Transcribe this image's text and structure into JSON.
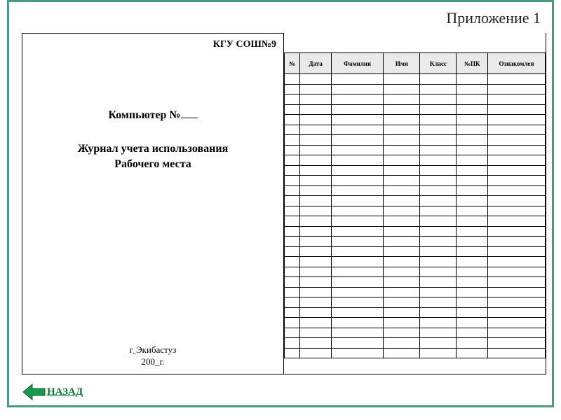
{
  "appendix_label": "Приложение 1",
  "left": {
    "org_name": "КГУ СОШ№9",
    "computer_prefix": "Компьютер №",
    "journal_line1": "Журнал учета использования",
    "journal_line2": "Рабочего места",
    "city_prefix": "г",
    "city_name": "Экибастуз",
    "year_line": "200_г."
  },
  "table": {
    "columns": [
      "№",
      "Дата",
      "Фамилия",
      "Имя",
      "Класс",
      "№ПК",
      "Ознакомлен"
    ],
    "row_count": 28,
    "header_bg": "#eaeaea",
    "border_color": "#000000"
  },
  "back": {
    "label": "НАЗАД",
    "arrow_fill": "#1a9850",
    "arrow_stroke": "#0d5c2f",
    "text_color": "#0a7a3a"
  },
  "frame_color": "#4a9a8a"
}
